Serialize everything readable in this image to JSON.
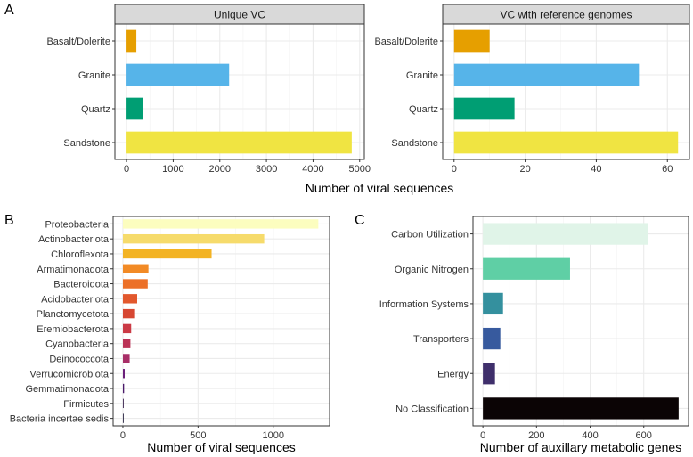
{
  "panel_labels": {
    "a": "A",
    "b": "B",
    "c": "C"
  },
  "chart_data": [
    {
      "id": "A1",
      "type": "bar",
      "orientation": "horizontal",
      "title": "Unique VC",
      "categories": [
        "Basalt/Dolerite",
        "Granite",
        "Quartz",
        "Sandstone"
      ],
      "values": [
        210,
        2200,
        360,
        4830
      ],
      "colors": [
        "#E69F00",
        "#56B4E9",
        "#009E73",
        "#F0E442"
      ],
      "xlim": [
        -250,
        5100
      ],
      "ticks": [
        0,
        1000,
        2000,
        3000,
        4000,
        5000
      ],
      "tick_labels": [
        "0",
        "1000",
        "2000",
        "3000",
        "4000",
        "5000"
      ],
      "xlabel": ""
    },
    {
      "id": "A2",
      "type": "bar",
      "orientation": "horizontal",
      "title": "VC with reference genomes",
      "categories": [
        "Basalt/Dolerite",
        "Granite",
        "Quartz",
        "Sandstone"
      ],
      "values": [
        10,
        52,
        17,
        63
      ],
      "colors": [
        "#E69F00",
        "#56B4E9",
        "#009E73",
        "#F0E442"
      ],
      "xlim": [
        -3.2,
        66.2
      ],
      "ticks": [
        0,
        20,
        40,
        60
      ],
      "tick_labels": [
        "0",
        "20",
        "40",
        "60"
      ],
      "xlabel": ""
    },
    {
      "id": "B",
      "type": "bar",
      "orientation": "horizontal",
      "title": "",
      "categories": [
        "Proteobacteria",
        "Actinobacteriota",
        "Chloroflexota",
        "Armatimonadota",
        "Bacteroidota",
        "Acidobacteriota",
        "Planctomycetota",
        "Eremiobacterota",
        "Cyanobacteria",
        "Deinococcota",
        "Verrucomicrobiota",
        "Gemmatimonadota",
        "Firmicutes",
        "Bacteria incertae sedis"
      ],
      "values": [
        1300,
        940,
        590,
        170,
        165,
        95,
        75,
        55,
        50,
        45,
        12,
        8,
        5,
        3
      ],
      "colors": [
        "#FCFDBF",
        "#F6DB6B",
        "#F3B323",
        "#F28A25",
        "#EC7028",
        "#E2582D",
        "#D74732",
        "#CB3A45",
        "#BB3356",
        "#A82E67",
        "#6B1F7A",
        "#4A1A6A",
        "#2B1240",
        "#0D0829"
      ],
      "xlim": [
        -65,
        1375
      ],
      "ticks": [
        0,
        500,
        1000
      ],
      "tick_labels": [
        "0",
        "500",
        "1000"
      ],
      "xlabel": "Number of viral sequences"
    },
    {
      "id": "C",
      "type": "bar",
      "orientation": "horizontal",
      "title": "",
      "categories": [
        "Carbon Utilization",
        "Organic Nitrogen",
        "Information Systems",
        "Transporters",
        "Energy",
        "No Classification"
      ],
      "values": [
        615,
        325,
        75,
        65,
        45,
        730
      ],
      "colors": [
        "#E0F4E8",
        "#5FCFA5",
        "#34909E",
        "#375A9E",
        "#3F2F6B",
        "#0B0405"
      ],
      "xlim": [
        -37,
        767
      ],
      "ticks": [
        0,
        200,
        400,
        600
      ],
      "tick_labels": [
        "0",
        "200",
        "400",
        "600"
      ],
      "xlabel": "Number of auxillary metabolic genes"
    }
  ],
  "shared_xlabel_a": "Number of viral sequences"
}
